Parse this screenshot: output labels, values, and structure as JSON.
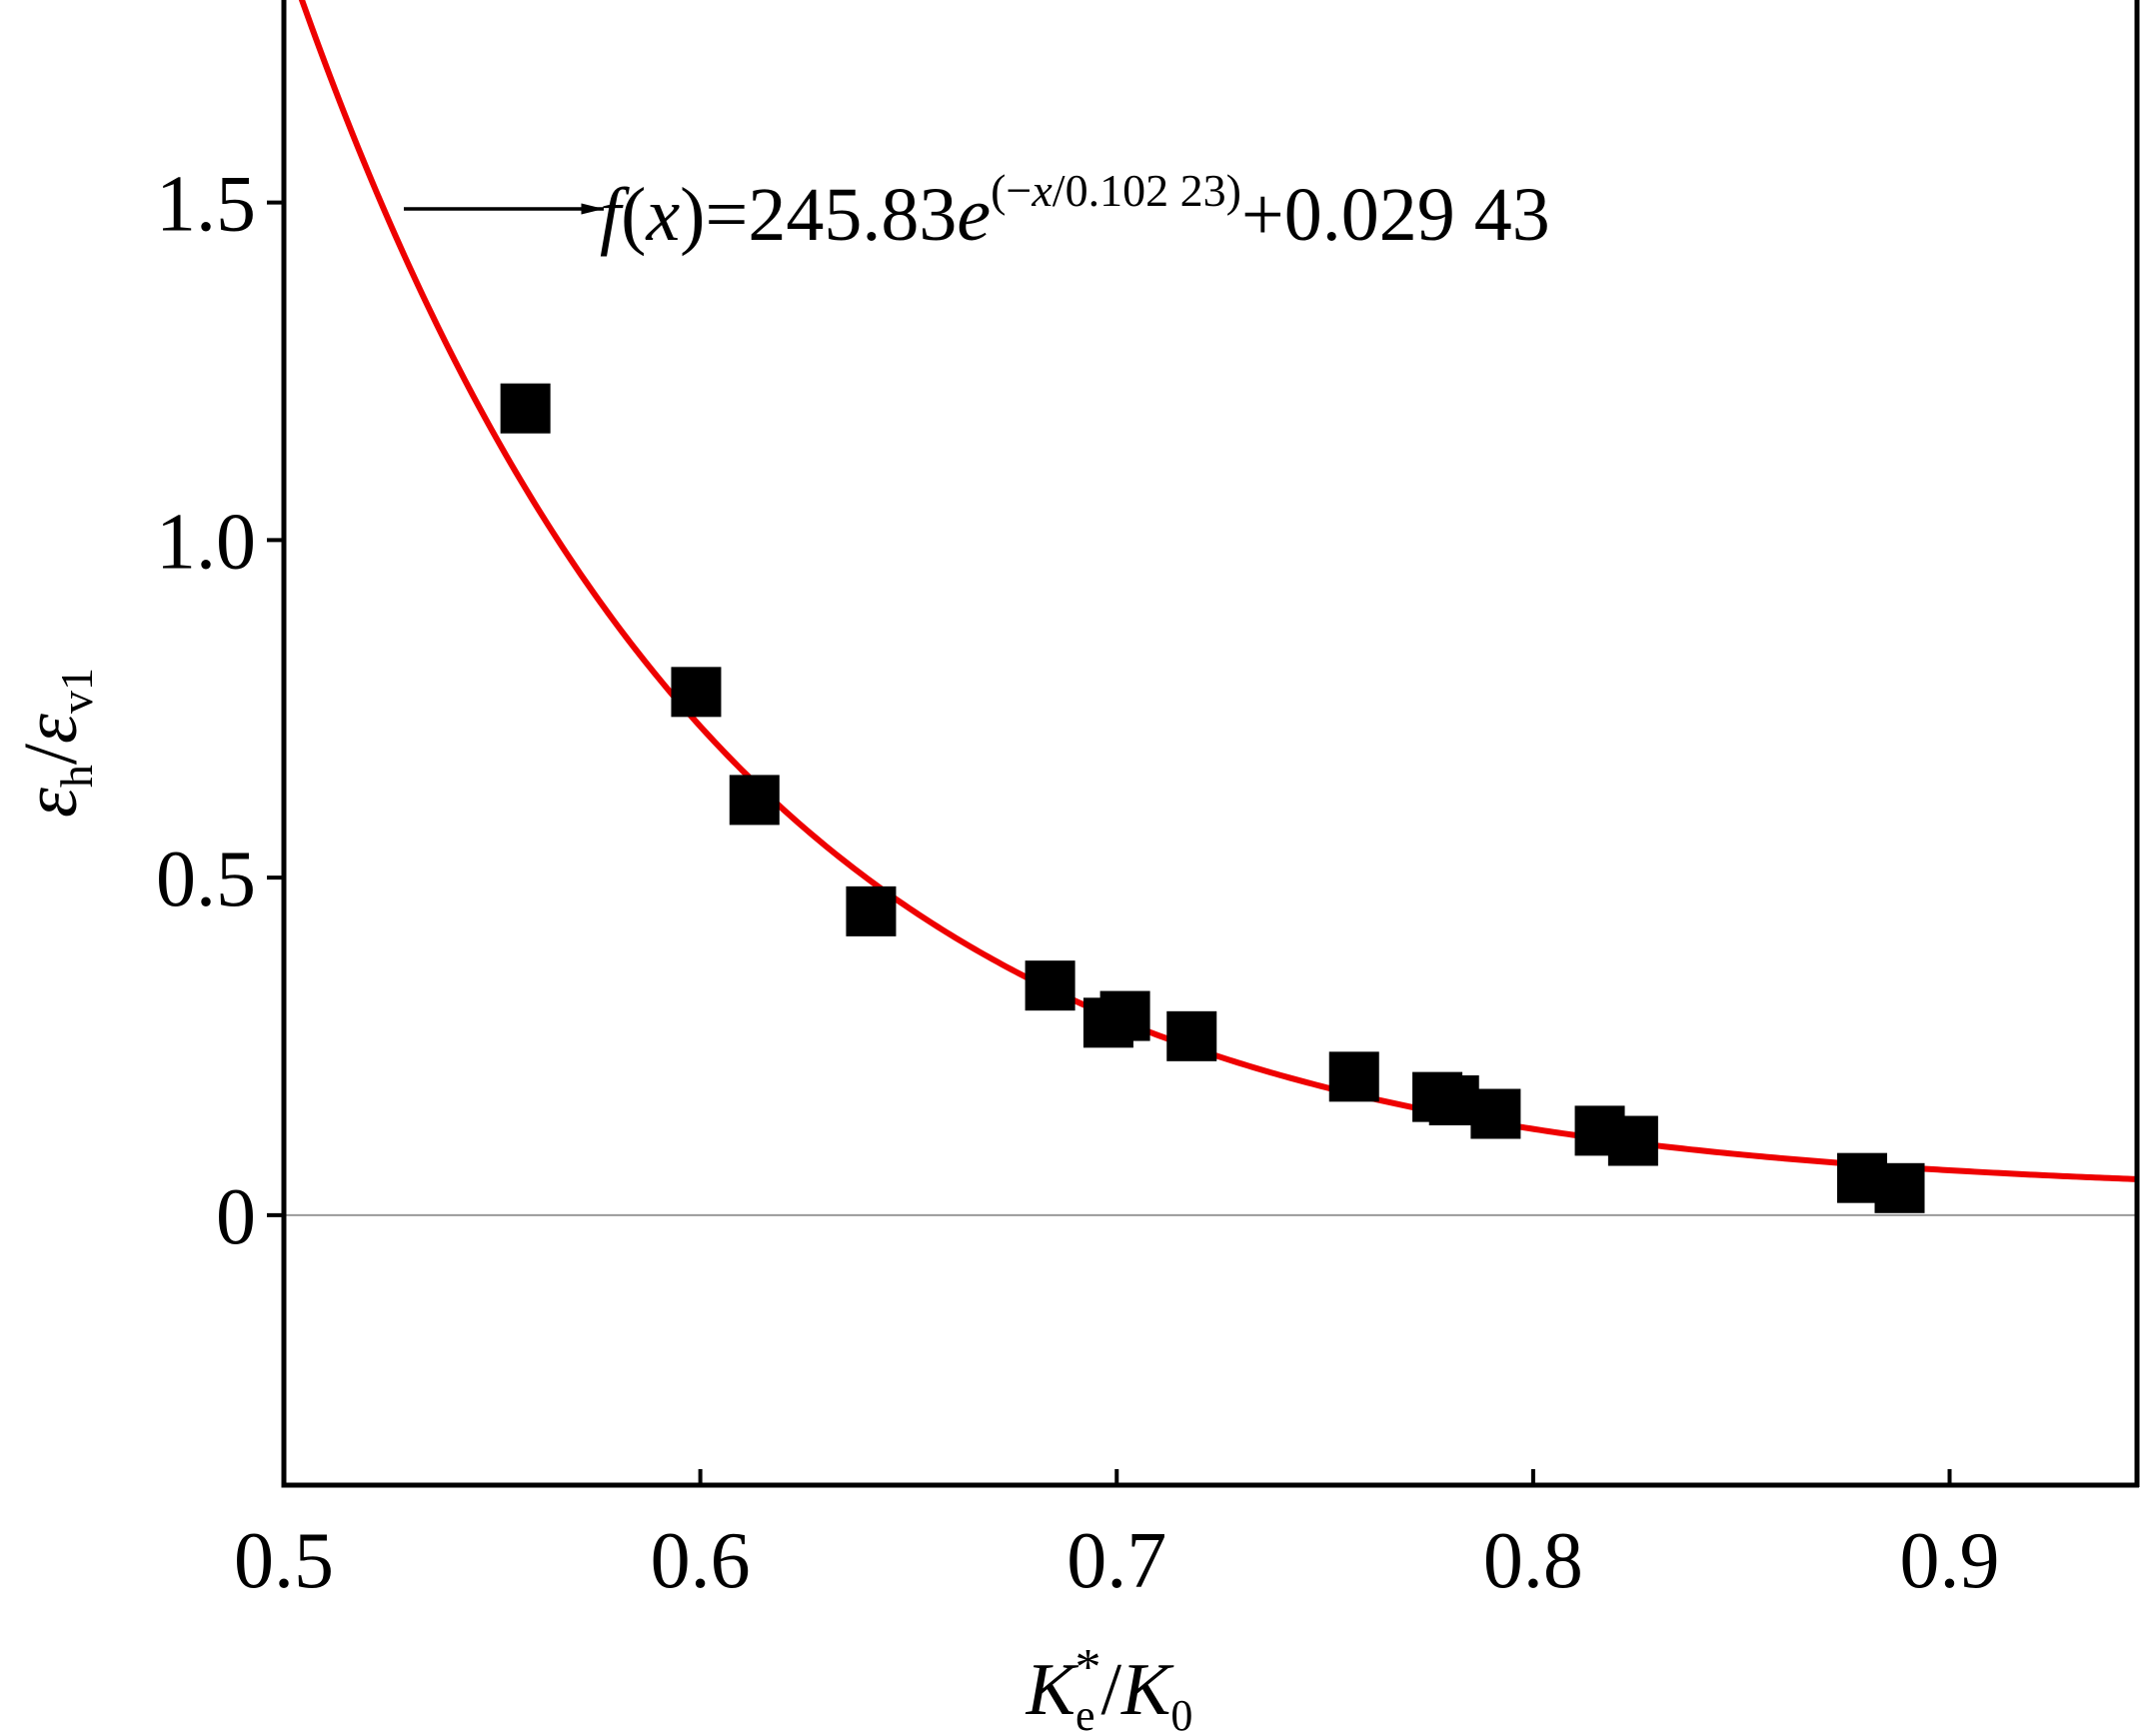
{
  "chart_data": {
    "type": "scatter",
    "title": "",
    "xlabel": {
      "main": "K",
      "sub": "e",
      "sup": "*",
      "slash": "/",
      "main2": "K",
      "sub2": "0"
    },
    "ylabel": {
      "main": "ε",
      "sub": "h",
      "slash": "/",
      "main2": "ε",
      "sub2": "v1"
    },
    "xlim": [
      0.5,
      0.945
    ],
    "ylim": [
      -0.4,
      1.8
    ],
    "xticks": [
      0.5,
      0.6,
      0.7,
      0.8,
      0.9
    ],
    "xtick_labels": [
      "0.5",
      "0.6",
      "0.7",
      "0.8",
      "0.9"
    ],
    "yticks": [
      0,
      0.5,
      1.0,
      1.5
    ],
    "ytick_labels": [
      "0",
      "0.5",
      "1.0",
      "1.5"
    ],
    "zero_line": true,
    "colors": {
      "fit_line": "#ee0000",
      "points": "#000000",
      "axis": "#000000",
      "zero_line": "#999999"
    },
    "series": [
      {
        "name": "data",
        "marker": "square",
        "x": [
          0.558,
          0.599,
          0.613,
          0.641,
          0.684,
          0.698,
          0.702,
          0.718,
          0.757,
          0.777,
          0.781,
          0.791,
          0.816,
          0.824,
          0.879,
          0.888
        ],
        "y": [
          1.195,
          0.775,
          0.615,
          0.45,
          0.34,
          0.285,
          0.295,
          0.265,
          0.205,
          0.175,
          0.17,
          0.15,
          0.125,
          0.11,
          0.055,
          0.04
        ]
      },
      {
        "name": "fit",
        "type": "line",
        "function": "245.83*exp(-x/0.10223)+0.02943",
        "A": 245.83,
        "t": 0.10223,
        "y0": 0.02943
      }
    ],
    "annotation": {
      "prefix": "f",
      "open": "(",
      "var": "x",
      "close": ")",
      "eq_coef": "=245.83",
      "base": "e",
      "exp_open": "(",
      "exp_minus": "−",
      "exp_var": "x",
      "exp_rest": "/0.102 23)",
      "tail": "+0.029 43"
    }
  }
}
